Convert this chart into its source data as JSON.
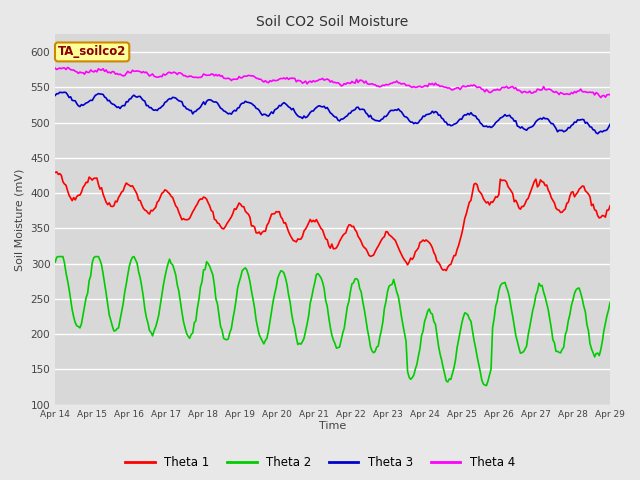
{
  "title": "Soil CO2 Soil Moisture",
  "xlabel": "Time",
  "ylabel": "Soil Moisture (mV)",
  "ylim": [
    100,
    625
  ],
  "yticks": [
    100,
    150,
    200,
    250,
    300,
    350,
    400,
    450,
    500,
    550,
    600
  ],
  "xtick_labels": [
    "Apr 14",
    "Apr 15",
    "Apr 16",
    "Apr 17",
    "Apr 18",
    "Apr 19",
    "Apr 20",
    "Apr 21",
    "Apr 22",
    "Apr 23",
    "Apr 24",
    "Apr 25",
    "Apr 26",
    "Apr 27",
    "Apr 28",
    "Apr 29"
  ],
  "colors": {
    "theta1": "#ff0000",
    "theta2": "#00cc00",
    "theta3": "#0000cc",
    "theta4": "#ff00ff"
  },
  "legend_label": "TA_soilco2",
  "legend_box_facecolor": "#ffff99",
  "legend_box_edgecolor": "#cc8800",
  "fig_facecolor": "#e8e8e8",
  "ax_facecolor": "#d8d8d8",
  "grid_color": "#ffffff",
  "linewidth": 1.2
}
